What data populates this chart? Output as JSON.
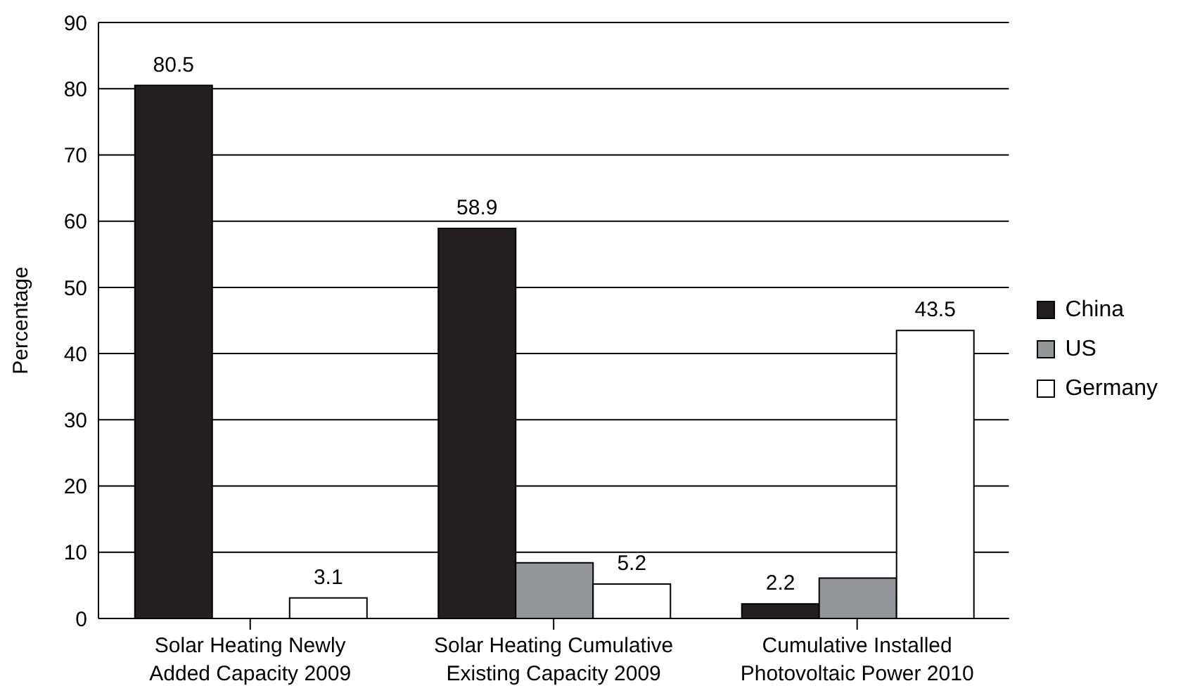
{
  "chart_data": {
    "type": "bar",
    "ylabel": "Percentage",
    "categories": [
      "Solar Heating Newly Added Capacity 2009",
      "Solar Heating Cumulative Existing Capacity 2009",
      "Cumulative Installed Photovoltaic Power 2010"
    ],
    "series": [
      {
        "name": "China",
        "color": "#231f20",
        "values": [
          80.5,
          58.9,
          2.2
        ],
        "value_labels": [
          "80.5",
          "58.9",
          "2.2"
        ]
      },
      {
        "name": "US",
        "color": "#939598",
        "values": [
          null,
          8.4,
          6.1
        ],
        "value_labels": [
          null,
          null,
          null
        ]
      },
      {
        "name": "Germany",
        "color": "#ffffff",
        "values": [
          3.1,
          5.2,
          43.5
        ],
        "value_labels": [
          "3.1",
          "5.2",
          "43.5"
        ]
      }
    ],
    "ylim": [
      0,
      90
    ],
    "yticks": [
      0,
      10,
      20,
      30,
      40,
      50,
      60,
      70,
      80,
      90
    ],
    "grid": "y",
    "legend": "right"
  }
}
